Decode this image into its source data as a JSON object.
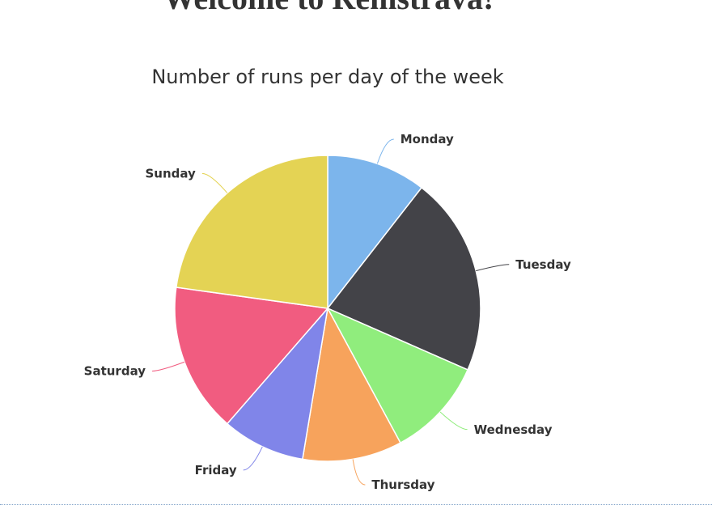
{
  "page": {
    "heading": "Welcome to Remstrava!"
  },
  "chart_data": {
    "type": "pie",
    "title": "Number of runs per day of the week",
    "categories": [
      "Monday",
      "Tuesday",
      "Wednesday",
      "Thursday",
      "Friday",
      "Saturday",
      "Sunday"
    ],
    "values": [
      3,
      6,
      3,
      3,
      2.5,
      4.5,
      6.5
    ],
    "colors": [
      "#7cb5ec",
      "#434348",
      "#90ed7d",
      "#f7a35c",
      "#8085e9",
      "#f15c80",
      "#e4d354"
    ],
    "data_labels": "outside-with-connectors",
    "legend": "none"
  }
}
